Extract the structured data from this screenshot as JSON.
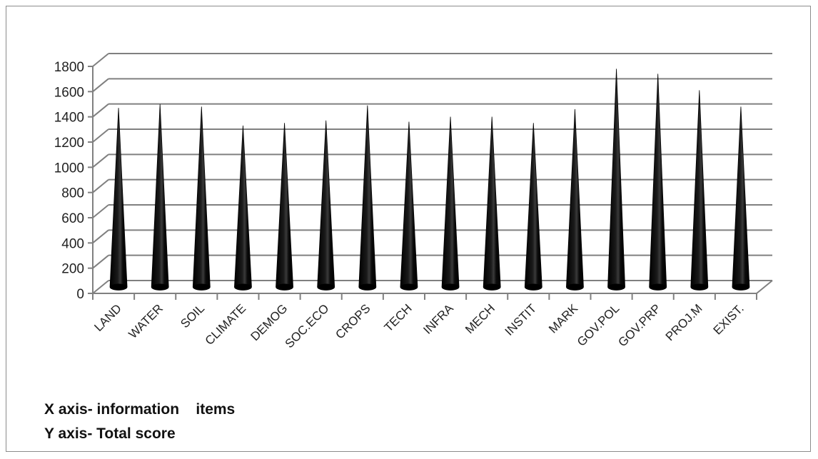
{
  "chart_data": {
    "type": "bar",
    "bar_shape": "3d-cone",
    "categories": [
      "LAND",
      "WATER",
      "SOIL",
      "CLIMATE",
      "DEMOG",
      "SOC.ECO",
      "CROPS",
      "TECH",
      "INFRA",
      "MECH",
      "INSTIT",
      "MARK",
      "GOV.POL",
      "GOV.PRP",
      "PROJ.M",
      "EXIST."
    ],
    "values": [
      1420,
      1450,
      1430,
      1280,
      1300,
      1320,
      1440,
      1310,
      1350,
      1350,
      1300,
      1410,
      1730,
      1690,
      1560,
      1430
    ],
    "ylim": [
      0,
      1800
    ],
    "yticks": [
      "0",
      "200",
      "400",
      "600",
      "800",
      "1000",
      "1200",
      "1400",
      "1600",
      "1800"
    ],
    "grid": true,
    "legend": "none",
    "colors": {
      "bar": "#000000",
      "grid": "#808080",
      "axis": "#808080"
    }
  },
  "notes": {
    "x_axis": "X axis- information    items",
    "y_axis": "Y axis- Total score"
  }
}
